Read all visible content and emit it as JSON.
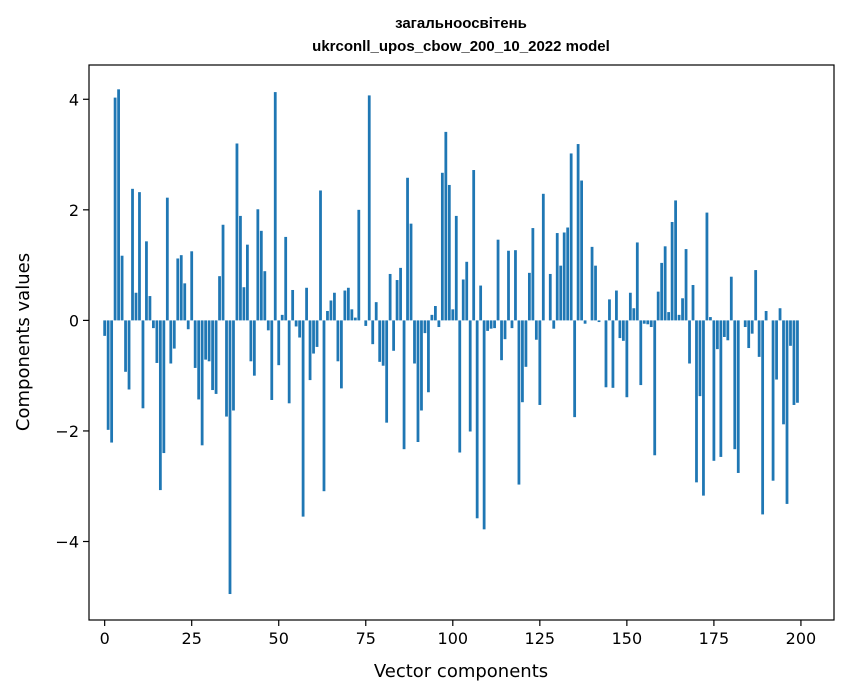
{
  "chart_data": {
    "type": "bar",
    "title_line1": "загальноосвітень",
    "title_line2": "ukrconll_upos_cbow_200_10_2022 model",
    "xlabel": "Vector components",
    "ylabel": "Components values",
    "xlim": [
      -4.5,
      209.5
    ],
    "ylim": [
      -5.42,
      4.62
    ],
    "xticks": [
      0,
      25,
      50,
      75,
      100,
      125,
      150,
      175,
      200
    ],
    "xtick_labels": [
      "0",
      "25",
      "50",
      "75",
      "100",
      "125",
      "150",
      "175",
      "200"
    ],
    "yticks": [
      -4,
      -2,
      0,
      2,
      4
    ],
    "ytick_labels": [
      "−4",
      "−2",
      "0",
      "2",
      "4"
    ],
    "grid": false,
    "bar_color": "#1f77b4",
    "values": [
      -0.28,
      -1.98,
      -2.21,
      4.03,
      4.18,
      1.17,
      -0.93,
      -1.25,
      2.38,
      0.5,
      2.32,
      -1.59,
      1.43,
      0.44,
      -0.14,
      -0.77,
      -3.07,
      -2.4,
      2.22,
      -0.78,
      -0.51,
      1.12,
      1.18,
      0.67,
      -0.16,
      1.25,
      -0.86,
      -1.43,
      -2.26,
      -0.71,
      -0.74,
      -1.26,
      -1.33,
      0.8,
      1.73,
      -1.74,
      -4.95,
      -1.63,
      3.2,
      1.89,
      0.6,
      1.37,
      -0.74,
      -1.0,
      2.01,
      1.62,
      0.89,
      -0.18,
      -1.44,
      4.13,
      -0.81,
      0.1,
      1.51,
      -1.5,
      0.55,
      -0.11,
      -0.31,
      -3.55,
      0.59,
      -1.08,
      -0.6,
      -0.48,
      2.35,
      -3.09,
      0.17,
      0.36,
      0.5,
      -0.74,
      -1.23,
      0.54,
      0.59,
      0.2,
      0.05,
      2.0,
      0.0,
      -0.1,
      4.07,
      -0.43,
      0.33,
      -0.75,
      -0.82,
      -1.85,
      0.84,
      -0.55,
      0.73,
      0.95,
      -2.33,
      2.58,
      1.75,
      -0.78,
      -2.2,
      -1.63,
      -0.23,
      -1.3,
      0.1,
      0.26,
      -0.12,
      2.67,
      3.41,
      2.45,
      0.2,
      1.89,
      -2.39,
      0.74,
      1.06,
      -2.01,
      2.72,
      -3.58,
      0.63,
      -3.78,
      -0.19,
      -0.15,
      -0.14,
      1.46,
      -0.72,
      -0.34,
      1.26,
      -0.14,
      1.27,
      -2.97,
      -1.48,
      -0.84,
      0.86,
      1.67,
      -0.35,
      -1.53,
      2.29,
      0.0,
      0.84,
      -0.15,
      1.58,
      0.99,
      1.59,
      1.68,
      3.02,
      -1.75,
      3.19,
      2.53,
      -0.06,
      0.0,
      1.33,
      0.99,
      -0.03,
      0.0,
      -1.21,
      0.38,
      -1.22,
      0.54,
      -0.32,
      -0.37,
      -1.39,
      0.5,
      0.22,
      1.41,
      -1.17,
      -0.06,
      -0.07,
      -0.12,
      -2.44,
      0.52,
      1.04,
      1.34,
      0.15,
      1.78,
      2.17,
      0.1,
      0.4,
      1.29,
      -0.78,
      0.64,
      -2.93,
      -1.37,
      -3.17,
      1.95,
      0.06,
      -2.54,
      -0.52,
      -2.47,
      -0.3,
      -0.36,
      0.79,
      -2.33,
      -2.76,
      0.0,
      -0.12,
      -0.5,
      -0.24,
      0.91,
      -0.66,
      -3.51,
      0.17,
      0.0,
      -2.9,
      -1.07,
      0.22,
      -1.88,
      -3.32,
      -0.46,
      -1.53,
      -1.49
    ]
  }
}
